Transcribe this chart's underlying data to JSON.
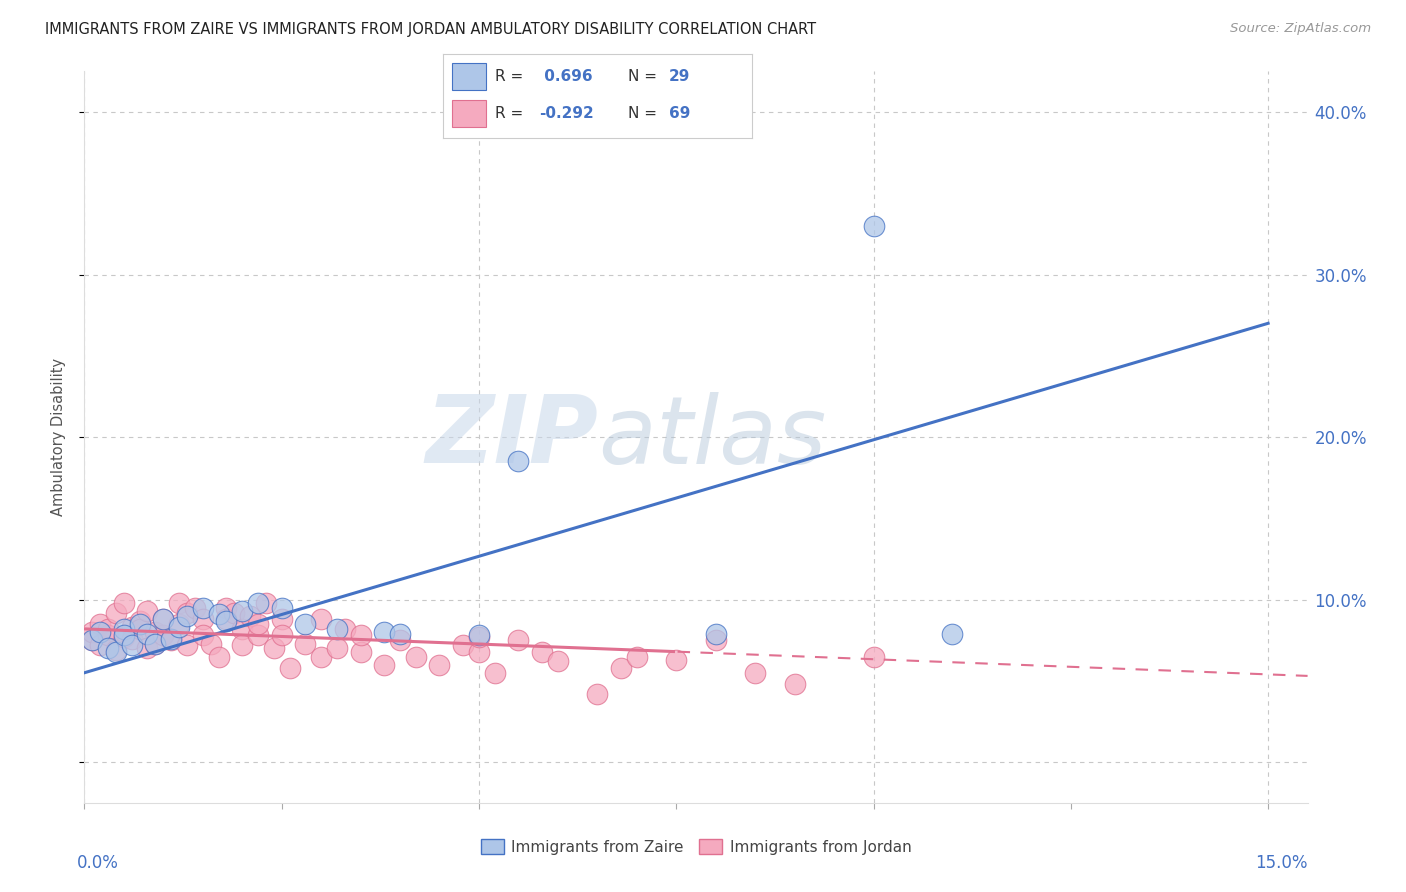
{
  "title": "IMMIGRANTS FROM ZAIRE VS IMMIGRANTS FROM JORDAN AMBULATORY DISABILITY CORRELATION CHART",
  "source": "Source: ZipAtlas.com",
  "ylabel": "Ambulatory Disability",
  "xlim": [
    0.0,
    0.155
  ],
  "ylim": [
    -0.025,
    0.425
  ],
  "zaire_R": 0.696,
  "zaire_N": 29,
  "jordan_R": -0.292,
  "jordan_N": 69,
  "zaire_color": "#aec6e8",
  "jordan_color": "#f5aabf",
  "zaire_line_color": "#4472c4",
  "jordan_line_color": "#e07090",
  "zaire_scatter": [
    [
      0.001,
      0.075
    ],
    [
      0.002,
      0.08
    ],
    [
      0.003,
      0.07
    ],
    [
      0.004,
      0.068
    ],
    [
      0.005,
      0.082
    ],
    [
      0.005,
      0.078
    ],
    [
      0.006,
      0.072
    ],
    [
      0.007,
      0.085
    ],
    [
      0.008,
      0.079
    ],
    [
      0.009,
      0.073
    ],
    [
      0.01,
      0.088
    ],
    [
      0.011,
      0.076
    ],
    [
      0.012,
      0.083
    ],
    [
      0.013,
      0.09
    ],
    [
      0.015,
      0.095
    ],
    [
      0.017,
      0.091
    ],
    [
      0.018,
      0.087
    ],
    [
      0.02,
      0.093
    ],
    [
      0.022,
      0.098
    ],
    [
      0.025,
      0.095
    ],
    [
      0.028,
      0.085
    ],
    [
      0.032,
      0.082
    ],
    [
      0.038,
      0.08
    ],
    [
      0.04,
      0.079
    ],
    [
      0.05,
      0.078
    ],
    [
      0.055,
      0.185
    ],
    [
      0.08,
      0.079
    ],
    [
      0.1,
      0.33
    ],
    [
      0.11,
      0.079
    ]
  ],
  "jordan_scatter": [
    [
      0.001,
      0.075
    ],
    [
      0.001,
      0.08
    ],
    [
      0.002,
      0.072
    ],
    [
      0.002,
      0.085
    ],
    [
      0.003,
      0.078
    ],
    [
      0.003,
      0.082
    ],
    [
      0.004,
      0.069
    ],
    [
      0.004,
      0.092
    ],
    [
      0.005,
      0.077
    ],
    [
      0.005,
      0.098
    ],
    [
      0.006,
      0.083
    ],
    [
      0.006,
      0.076
    ],
    [
      0.007,
      0.087
    ],
    [
      0.007,
      0.082
    ],
    [
      0.008,
      0.093
    ],
    [
      0.008,
      0.07
    ],
    [
      0.009,
      0.08
    ],
    [
      0.009,
      0.073
    ],
    [
      0.01,
      0.078
    ],
    [
      0.01,
      0.088
    ],
    [
      0.011,
      0.075
    ],
    [
      0.012,
      0.098
    ],
    [
      0.012,
      0.085
    ],
    [
      0.013,
      0.092
    ],
    [
      0.013,
      0.072
    ],
    [
      0.014,
      0.095
    ],
    [
      0.015,
      0.088
    ],
    [
      0.015,
      0.078
    ],
    [
      0.016,
      0.073
    ],
    [
      0.017,
      0.065
    ],
    [
      0.018,
      0.095
    ],
    [
      0.018,
      0.088
    ],
    [
      0.019,
      0.092
    ],
    [
      0.02,
      0.082
    ],
    [
      0.02,
      0.072
    ],
    [
      0.021,
      0.09
    ],
    [
      0.022,
      0.078
    ],
    [
      0.022,
      0.085
    ],
    [
      0.023,
      0.098
    ],
    [
      0.024,
      0.07
    ],
    [
      0.025,
      0.088
    ],
    [
      0.025,
      0.078
    ],
    [
      0.026,
      0.058
    ],
    [
      0.028,
      0.073
    ],
    [
      0.03,
      0.088
    ],
    [
      0.03,
      0.065
    ],
    [
      0.032,
      0.07
    ],
    [
      0.033,
      0.082
    ],
    [
      0.035,
      0.068
    ],
    [
      0.035,
      0.078
    ],
    [
      0.038,
      0.06
    ],
    [
      0.04,
      0.075
    ],
    [
      0.042,
      0.065
    ],
    [
      0.045,
      0.06
    ],
    [
      0.048,
      0.072
    ],
    [
      0.05,
      0.068
    ],
    [
      0.05,
      0.077
    ],
    [
      0.052,
      0.055
    ],
    [
      0.055,
      0.075
    ],
    [
      0.058,
      0.068
    ],
    [
      0.06,
      0.062
    ],
    [
      0.065,
      0.042
    ],
    [
      0.068,
      0.058
    ],
    [
      0.07,
      0.065
    ],
    [
      0.075,
      0.063
    ],
    [
      0.08,
      0.075
    ],
    [
      0.085,
      0.055
    ],
    [
      0.09,
      0.048
    ],
    [
      0.1,
      0.065
    ]
  ],
  "zaire_line": {
    "x0": 0.0,
    "y0": 0.055,
    "x1": 0.15,
    "y1": 0.27
  },
  "jordan_line_solid": {
    "x0": 0.0,
    "y0": 0.082,
    "x1": 0.075,
    "y1": 0.068
  },
  "jordan_line_dash_start": 0.075,
  "watermark_zip": "ZIP",
  "watermark_atlas": "atlas",
  "background_color": "#ffffff",
  "grid_color": "#c8c8c8",
  "ytick_vals": [
    0.0,
    0.1,
    0.2,
    0.3,
    0.4
  ],
  "ytick_labels": [
    "",
    "10.0%",
    "20.0%",
    "30.0%",
    "40.0%"
  ],
  "xtick_labels_show": [
    "0.0%",
    "15.0%"
  ],
  "legend_box_color": "#ffffff",
  "legend_box_edge": "#cccccc"
}
